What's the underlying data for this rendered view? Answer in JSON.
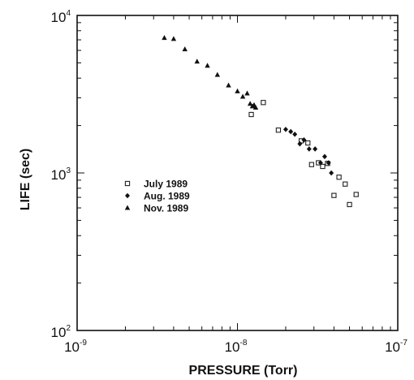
{
  "chart_data": {
    "type": "scatter",
    "xlabel": "PRESSURE (Torr)",
    "ylabel": "LIFE (sec)",
    "x_scale": "log",
    "y_scale": "log",
    "xlim": [
      1e-09,
      1e-07
    ],
    "ylim": [
      100,
      10000
    ],
    "x_ticks": [
      {
        "base": "10",
        "exp": "-9"
      },
      {
        "base": "10",
        "exp": "-8"
      },
      {
        "base": "10",
        "exp": "-7"
      }
    ],
    "y_ticks": [
      {
        "base": "10",
        "exp": "2"
      },
      {
        "base": "10",
        "exp": "3"
      },
      {
        "base": "10",
        "exp": "4"
      }
    ],
    "legend_position": "left-middle",
    "grid": false,
    "series": [
      {
        "name": "July 1989",
        "marker": "open-square",
        "points": [
          [
            1.22e-08,
            2350
          ],
          [
            1.45e-08,
            2800
          ],
          [
            1.8e-08,
            1870
          ],
          [
            2.5e-08,
            1600
          ],
          [
            2.75e-08,
            1550
          ],
          [
            2.9e-08,
            1130
          ],
          [
            3.2e-08,
            1160
          ],
          [
            3.4e-08,
            1100
          ],
          [
            3.65e-08,
            1150
          ],
          [
            4e-08,
            720
          ],
          [
            4.3e-08,
            940
          ],
          [
            4.7e-08,
            850
          ],
          [
            5e-08,
            630
          ],
          [
            5.5e-08,
            730
          ]
        ]
      },
      {
        "name": "Aug. 1989",
        "marker": "filled-diamond",
        "points": [
          [
            2e-08,
            1890
          ],
          [
            2.15e-08,
            1830
          ],
          [
            2.28e-08,
            1760
          ],
          [
            2.45e-08,
            1530
          ],
          [
            2.6e-08,
            1620
          ],
          [
            2.8e-08,
            1420
          ],
          [
            3.05e-08,
            1420
          ],
          [
            3.3e-08,
            1160
          ],
          [
            3.5e-08,
            1270
          ],
          [
            3.7e-08,
            1160
          ],
          [
            3.85e-08,
            1000
          ]
        ]
      },
      {
        "name": "Nov. 1989",
        "marker": "filled-triangle",
        "points": [
          [
            3.5e-09,
            7200
          ],
          [
            4e-09,
            7100
          ],
          [
            4.7e-09,
            6100
          ],
          [
            5.6e-09,
            5100
          ],
          [
            6.5e-09,
            4800
          ],
          [
            7.5e-09,
            4200
          ],
          [
            8.8e-09,
            3600
          ],
          [
            1e-08,
            3300
          ],
          [
            1.08e-08,
            3050
          ],
          [
            1.15e-08,
            3200
          ],
          [
            1.2e-08,
            2750
          ],
          [
            1.24e-08,
            2650
          ],
          [
            1.27e-08,
            2700
          ],
          [
            1.3e-08,
            2600
          ]
        ]
      }
    ]
  }
}
